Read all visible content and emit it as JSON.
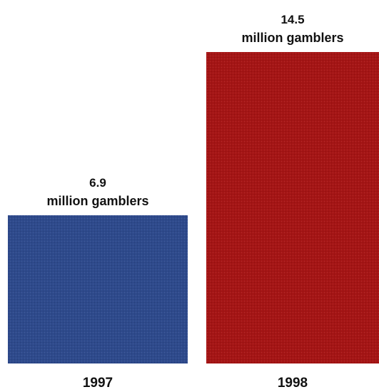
{
  "chart_data": {
    "type": "bar",
    "categories": [
      "1997",
      "1998"
    ],
    "values": [
      6.9,
      14.5
    ],
    "value_labels": [
      "6.9",
      "14.5"
    ],
    "unit_label": "million gamblers",
    "title": "",
    "xlabel": "",
    "ylabel": "",
    "ylim": [
      0,
      14.5
    ],
    "grid": false,
    "bar_colors": [
      "#2e4a8c",
      "#a51515"
    ]
  }
}
